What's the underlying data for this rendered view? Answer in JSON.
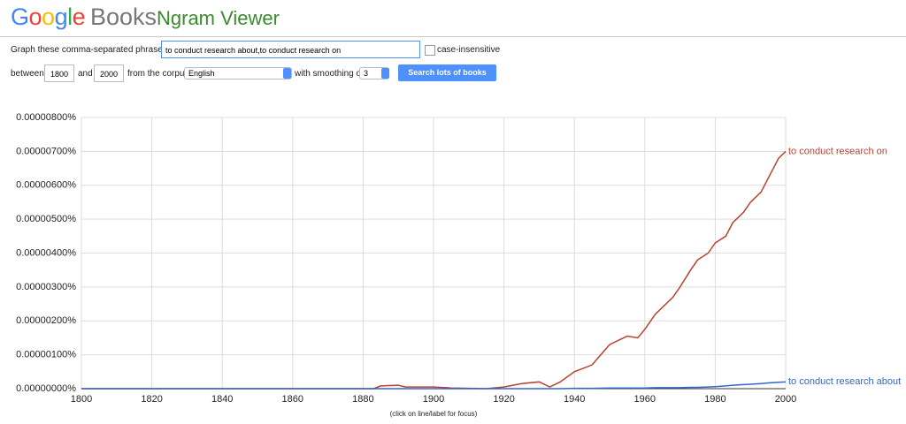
{
  "header": {
    "logo": "Google",
    "product": "Books",
    "app": "Ngram Viewer"
  },
  "form": {
    "phrases_label": "Graph these comma-separated phrases:",
    "phrases": "to conduct research about,to conduct research on",
    "case_label": "case-insensitive",
    "between": "between",
    "start": "1800",
    "and": "and",
    "end": "2000",
    "corpus_label": "from the corpus",
    "corpus": "English",
    "smoothing_label": "with smoothing of",
    "smoothing": "3",
    "button": "Search lots of books"
  },
  "chart_data": {
    "type": "line",
    "x": [
      1800,
      1880,
      1883,
      1885,
      1890,
      1892,
      1900,
      1905,
      1915,
      1920,
      1925,
      1930,
      1933,
      1936,
      1940,
      1945,
      1950,
      1955,
      1958,
      1960,
      1963,
      1965,
      1968,
      1970,
      1973,
      1975,
      1978,
      1980,
      1983,
      1985,
      1988,
      1990,
      1993,
      1995,
      1998,
      2000
    ],
    "series": [
      {
        "name": "to conduct research on",
        "color": "#b9412f",
        "values": [
          0,
          0,
          0,
          8e-08,
          1e-07,
          5e-08,
          5e-08,
          2e-08,
          0,
          5e-08,
          1.5e-07,
          2e-07,
          5e-08,
          2e-07,
          5e-07,
          7e-07,
          1.3e-06,
          1.55e-06,
          1.5e-06,
          1.75e-06,
          2.2e-06,
          2.4e-06,
          2.7e-06,
          3e-06,
          3.5e-06,
          3.8e-06,
          4e-06,
          4.3e-06,
          4.5e-06,
          4.9e-06,
          5.2e-06,
          5.5e-06,
          5.8e-06,
          6.2e-06,
          6.8e-06,
          7e-06
        ]
      },
      {
        "name": "to conduct research about",
        "color": "#3366cc",
        "values": [
          0,
          0,
          0,
          0,
          0,
          0,
          0,
          0,
          0,
          0,
          0,
          0,
          0,
          0,
          1e-08,
          1e-08,
          2e-08,
          2e-08,
          2e-08,
          2e-08,
          3e-08,
          3e-08,
          3e-08,
          3e-08,
          4e-08,
          4e-08,
          5e-08,
          6e-08,
          8e-08,
          1e-07,
          1.2e-07,
          1.3e-07,
          1.5e-07,
          1.7e-07,
          1.9e-07,
          2e-07
        ]
      }
    ],
    "xlim": [
      1800,
      2000
    ],
    "xticks": [
      1800,
      1820,
      1840,
      1860,
      1880,
      1900,
      1920,
      1940,
      1960,
      1980,
      2000
    ],
    "ylim": [
      0,
      8e-06
    ],
    "yticks": [
      {
        "value": 0,
        "label": "0.00000000%"
      },
      {
        "value": 1e-06,
        "label": "0.00000100%"
      },
      {
        "value": 2e-06,
        "label": "0.00000200%"
      },
      {
        "value": 3e-06,
        "label": "0.00000300%"
      },
      {
        "value": 4e-06,
        "label": "0.00000400%"
      },
      {
        "value": 5e-06,
        "label": "0.00000500%"
      },
      {
        "value": 6e-06,
        "label": "0.00000600%"
      },
      {
        "value": 7e-06,
        "label": "0.00000700%"
      },
      {
        "value": 8e-06,
        "label": "0.00000800%"
      }
    ],
    "grid": true,
    "note": "(click on line/label for focus)"
  }
}
